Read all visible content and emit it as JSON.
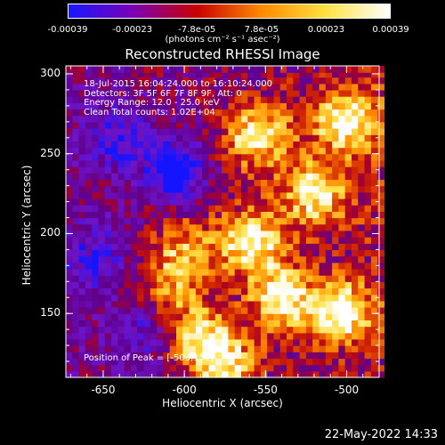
{
  "colorbar": {
    "ticks": [
      "-0.00039",
      "-0.00023",
      "-7.8e-05",
      "7.8e-05",
      "0.00023",
      "0.00039"
    ],
    "units": "(photons cm⁻² s⁻¹ asec⁻²)",
    "colors": [
      "#1818ff",
      "#7a00b4",
      "#c80000",
      "#ff8a00",
      "#ffe040",
      "#ffffff"
    ]
  },
  "title": "Reconstructed RHESSI Image",
  "info_lines": [
    "18-Jul-2015 16:04:24.000 to 16:10:24.000",
    "Detectors: 3F 5F 6F 7F 8F 9F, Att: 0",
    "Energy Range: 12.0 - 25.0 keV",
    "Clean     Total counts: 1.02E+04"
  ],
  "peak_label": "Position of Peak = [-503,152]",
  "xlabel": "Heliocentric X (arcsec)",
  "ylabel": "Heliocentric Y (arcsec)",
  "datestamp": "22-May-2022 14:33",
  "chart_data": {
    "type": "heatmap",
    "title": "Reconstructed RHESSI Image",
    "xlabel": "Heliocentric X (arcsec)",
    "ylabel": "Heliocentric Y (arcsec)",
    "xlim": [
      -673,
      -480
    ],
    "ylim": [
      110,
      305
    ],
    "x_ticks": [
      "-650",
      "-600",
      "-550",
      "-500"
    ],
    "y_ticks": [
      "300",
      "250",
      "200",
      "150"
    ],
    "x_tick_values": [
      -650,
      -600,
      -550,
      -500
    ],
    "y_tick_values": [
      300,
      250,
      200,
      150
    ],
    "colorbar_range": [
      -0.00039,
      0.00039
    ],
    "peak_position": [
      -503,
      152
    ],
    "bright_regions": [
      {
        "x": -555,
        "y": 262,
        "level": 0.85
      },
      {
        "x": -520,
        "y": 225,
        "level": 0.8
      },
      {
        "x": -500,
        "y": 270,
        "level": 0.85
      },
      {
        "x": -560,
        "y": 195,
        "level": 0.9
      },
      {
        "x": -540,
        "y": 160,
        "level": 0.85
      },
      {
        "x": -503,
        "y": 152,
        "level": 1.0
      },
      {
        "x": -590,
        "y": 135,
        "level": 0.75
      },
      {
        "x": -600,
        "y": 190,
        "level": 0.6
      },
      {
        "x": -610,
        "y": 165,
        "level": 0.55
      },
      {
        "x": -575,
        "y": 118,
        "level": 0.7
      }
    ],
    "dark_regions": [
      {
        "x": -605,
        "y": 240,
        "level": -0.95
      },
      {
        "x": -640,
        "y": 260,
        "level": -0.5
      },
      {
        "x": -655,
        "y": 185,
        "level": -0.45
      },
      {
        "x": -625,
        "y": 140,
        "level": -0.4
      }
    ]
  }
}
